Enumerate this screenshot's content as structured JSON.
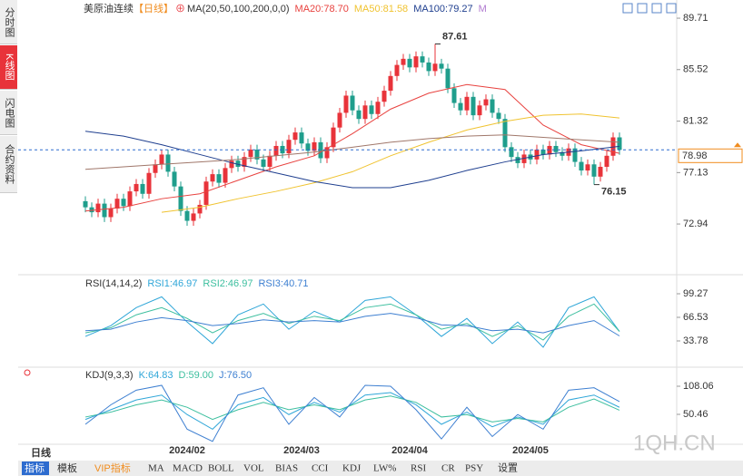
{
  "sidebar": [
    "分时图",
    "K线图",
    "闪电图",
    "合约资料"
  ],
  "sidebar_active": 1,
  "header": {
    "symbol": "美原油连续",
    "period": "【日线】",
    "more": "M"
  },
  "chart_data": [
    {
      "type": "candlestick",
      "legend_title": "MA(20,50,100,200,0,0)",
      "up_color": "#e8333a",
      "down_color": "#1f9e8c",
      "ylim": [
        69.03,
        90.6
      ],
      "yticks": [
        89.71,
        85.52,
        81.32,
        77.13,
        72.94
      ],
      "open": [
        74.8,
        74.3,
        73.9,
        74.6,
        73.5,
        74.2,
        75.0,
        74.4,
        75.6,
        76.2,
        75.4,
        77.1,
        77.8,
        78.6,
        77.2,
        76.0,
        74.0,
        73.2,
        73.8,
        74.5,
        76.4,
        77.0,
        76.3,
        77.5,
        78.1,
        77.6,
        78.4,
        79.0,
        78.2,
        77.6,
        78.5,
        79.3,
        78.7,
        79.8,
        80.4,
        79.5,
        78.9,
        79.6,
        78.3,
        79.2,
        80.8,
        82.0,
        83.4,
        82.2,
        81.5,
        82.6,
        81.9,
        82.9,
        83.8,
        85.0,
        85.9,
        86.4,
        85.7,
        86.6,
        86.1,
        85.4,
        86.0,
        85.6,
        84.0,
        82.8,
        82.2,
        83.3,
        81.8,
        82.6,
        83.1,
        82.0,
        81.5,
        79.2,
        78.4,
        77.9,
        78.6,
        78.2,
        79.0,
        78.6,
        79.3,
        78.8,
        78.5,
        79.1,
        78.0,
        77.3,
        77.8,
        76.8,
        77.6,
        78.5,
        80.0
      ],
      "high": [
        75.2,
        74.7,
        75.0,
        75.0,
        74.6,
        75.4,
        75.4,
        76.0,
        76.6,
        76.6,
        77.5,
        78.2,
        79.0,
        79.0,
        77.6,
        76.4,
        74.4,
        74.2,
        74.9,
        76.8,
        77.4,
        77.4,
        77.9,
        78.5,
        78.5,
        78.8,
        79.4,
        79.4,
        78.6,
        78.9,
        79.7,
        79.7,
        80.2,
        80.8,
        80.8,
        79.9,
        80.0,
        80.0,
        79.6,
        81.2,
        82.4,
        83.8,
        83.8,
        82.6,
        83.0,
        83.0,
        83.3,
        84.2,
        85.4,
        86.3,
        86.8,
        86.8,
        87.0,
        87.0,
        86.5,
        87.61,
        86.4,
        86.0,
        84.4,
        83.2,
        83.7,
        83.7,
        83.0,
        83.5,
        83.5,
        82.4,
        81.9,
        79.6,
        78.8,
        79.0,
        79.0,
        79.4,
        79.4,
        79.7,
        79.7,
        79.2,
        79.5,
        79.5,
        78.4,
        78.2,
        78.2,
        78.0,
        78.9,
        80.4,
        80.4
      ],
      "low": [
        73.9,
        73.5,
        73.5,
        73.1,
        73.1,
        73.8,
        74.0,
        74.0,
        75.2,
        75.0,
        75.0,
        76.7,
        77.4,
        76.8,
        75.6,
        73.6,
        72.8,
        72.8,
        73.4,
        74.1,
        76.0,
        75.9,
        75.9,
        77.1,
        77.2,
        77.2,
        78.0,
        77.8,
        77.2,
        77.2,
        78.1,
        78.3,
        78.3,
        79.4,
        79.1,
        78.5,
        78.5,
        77.9,
        77.9,
        78.8,
        80.4,
        81.6,
        81.8,
        81.1,
        81.1,
        81.5,
        81.5,
        82.5,
        83.4,
        84.6,
        85.5,
        85.3,
        85.3,
        85.7,
        85.0,
        85.0,
        85.2,
        83.6,
        82.4,
        81.8,
        81.8,
        81.4,
        81.4,
        82.2,
        81.6,
        81.1,
        78.8,
        78.0,
        77.5,
        77.5,
        77.8,
        77.8,
        78.2,
        78.2,
        78.4,
        78.1,
        78.1,
        77.6,
        76.9,
        76.9,
        76.15,
        76.4,
        77.2,
        78.1,
        78.58
      ],
      "close": [
        74.3,
        73.9,
        74.6,
        73.5,
        74.2,
        75.0,
        74.4,
        75.6,
        76.2,
        75.4,
        77.1,
        77.8,
        78.6,
        77.2,
        76.0,
        74.0,
        73.2,
        73.8,
        74.5,
        76.4,
        77.0,
        76.3,
        77.5,
        78.1,
        77.6,
        78.4,
        79.0,
        78.2,
        77.6,
        78.5,
        79.3,
        78.7,
        79.8,
        80.4,
        79.5,
        78.9,
        79.6,
        78.3,
        79.2,
        80.8,
        82.0,
        83.4,
        82.2,
        81.5,
        82.6,
        81.9,
        82.9,
        83.8,
        85.0,
        85.9,
        86.4,
        85.7,
        86.6,
        86.1,
        85.4,
        86.0,
        85.6,
        84.0,
        82.8,
        82.2,
        83.3,
        81.8,
        82.6,
        83.1,
        82.0,
        81.5,
        79.2,
        78.4,
        77.9,
        78.6,
        78.2,
        79.0,
        78.6,
        79.3,
        78.8,
        78.5,
        79.1,
        78.0,
        77.3,
        77.8,
        76.8,
        77.6,
        78.5,
        80.0,
        78.98
      ],
      "series": [
        {
          "name": "MA20:78.70",
          "color": "#e8423f",
          "x": [
            0,
            6,
            12,
            18,
            24,
            30,
            36,
            42,
            48,
            54,
            60,
            66,
            72,
            78,
            84
          ],
          "values": [
            74.0,
            74.3,
            75.0,
            75.4,
            76.5,
            77.6,
            78.5,
            80.3,
            82.3,
            83.6,
            84.3,
            83.9,
            81.0,
            79.4,
            78.7
          ]
        },
        {
          "name": "MA50:81.58",
          "color": "#f0c330",
          "x": [
            12,
            18,
            24,
            30,
            36,
            42,
            48,
            54,
            60,
            66,
            72,
            78,
            84
          ],
          "values": [
            73.9,
            74.3,
            75.0,
            75.6,
            76.3,
            77.2,
            78.5,
            79.6,
            80.6,
            81.3,
            81.8,
            81.9,
            81.58
          ]
        },
        {
          "name": "MA100:79.27",
          "color": "#1f3f8f",
          "x": [
            0,
            6,
            12,
            18,
            24,
            30,
            36,
            42,
            48,
            54,
            60,
            66,
            72,
            78,
            84
          ],
          "values": [
            80.5,
            80.1,
            79.4,
            78.6,
            77.8,
            77.1,
            76.4,
            75.9,
            75.9,
            76.5,
            77.3,
            78.0,
            78.6,
            78.9,
            79.27
          ]
        },
        {
          "color": "#a0776a",
          "x": [
            0,
            6,
            12,
            18,
            24,
            30,
            36,
            42,
            48,
            54,
            60,
            66,
            72,
            78,
            84
          ],
          "values": [
            77.4,
            77.6,
            77.8,
            78.0,
            78.2,
            78.5,
            78.8,
            79.2,
            79.6,
            79.9,
            80.1,
            80.2,
            80.0,
            79.8,
            79.6
          ]
        }
      ],
      "annotations": [
        {
          "index": 55,
          "value": 87.61,
          "color": "#e8333a"
        },
        {
          "index": 80,
          "value": 76.15,
          "color": "#1f9e8c"
        }
      ],
      "last_price": 78.98,
      "last_color": "#f08c1e"
    },
    {
      "type": "line",
      "legend_title": "RSI(14,14,2)",
      "ylim": [
        3.55,
        116.9
      ],
      "yticks": [
        99.27,
        66.53,
        33.78
      ],
      "x": [
        0,
        4,
        8,
        12,
        16,
        20,
        24,
        28,
        32,
        36,
        40,
        44,
        48,
        52,
        56,
        60,
        64,
        68,
        72,
        76,
        80,
        84
      ],
      "series": [
        {
          "name": "RSI1:46.97",
          "color": "#2fa6d8",
          "values": [
            40,
            55,
            80,
            95,
            60,
            30,
            70,
            85,
            50,
            75,
            60,
            90,
            95,
            70,
            40,
            65,
            30,
            60,
            25,
            80,
            95,
            46.97
          ]
        },
        {
          "name": "RSI2:46.97",
          "color": "#3dbf9f",
          "values": [
            45,
            52,
            70,
            80,
            65,
            45,
            62,
            72,
            58,
            68,
            62,
            80,
            85,
            70,
            50,
            58,
            40,
            55,
            35,
            68,
            85,
            46.97
          ]
        },
        {
          "name": "RSI3:40.71",
          "color": "#3d7fd1",
          "values": [
            48,
            50,
            60,
            66,
            62,
            55,
            58,
            63,
            60,
            62,
            60,
            68,
            72,
            66,
            56,
            55,
            48,
            50,
            45,
            55,
            62,
            40.71
          ]
        }
      ]
    },
    {
      "type": "line",
      "legend_title": "KDJ(9,3,3)",
      "ylim": [
        -10.9,
        134.1
      ],
      "yticks": [
        108.06,
        50.46
      ],
      "x": [
        0,
        4,
        8,
        12,
        16,
        20,
        24,
        28,
        32,
        36,
        40,
        44,
        48,
        52,
        56,
        60,
        64,
        68,
        72,
        76,
        80,
        84
      ],
      "series": [
        {
          "name": "K:64.83",
          "color": "#2fa6d8",
          "values": [
            40,
            60,
            80,
            90,
            50,
            20,
            70,
            85,
            50,
            75,
            55,
            90,
            95,
            70,
            30,
            55,
            25,
            45,
            30,
            80,
            90,
            64.83
          ]
        },
        {
          "name": "D:59.00",
          "color": "#3dbf9f",
          "values": [
            45,
            55,
            70,
            80,
            65,
            40,
            60,
            75,
            60,
            70,
            60,
            80,
            88,
            75,
            45,
            50,
            35,
            42,
            35,
            65,
            82,
            59.0
          ]
        },
        {
          "name": "J:76.50",
          "color": "#3d7fd1",
          "values": [
            30,
            70,
            100,
            110,
            20,
            -5,
            90,
            105,
            30,
            85,
            45,
            110,
            108,
            60,
            0,
            65,
            5,
            50,
            20,
            100,
            105,
            76.5
          ]
        }
      ],
      "xlabels": [
        {
          "index": 16,
          "label": "2024/02"
        },
        {
          "index": 34,
          "label": "2024/03"
        },
        {
          "index": 51,
          "label": "2024/04"
        },
        {
          "index": 70,
          "label": "2024/05"
        }
      ]
    }
  ],
  "period_label": "日线",
  "toolbar": [
    "指标",
    "模板",
    "VIP指标",
    "MA",
    "MACD",
    "BOLL",
    "VOL",
    "BIAS",
    "CCI",
    "KDJ",
    "LW%",
    "RSI",
    "CR",
    "PSY",
    "设置"
  ],
  "toolbar_active": 0,
  "toolbar_vip": 2,
  "watermark": "1QH.CN"
}
